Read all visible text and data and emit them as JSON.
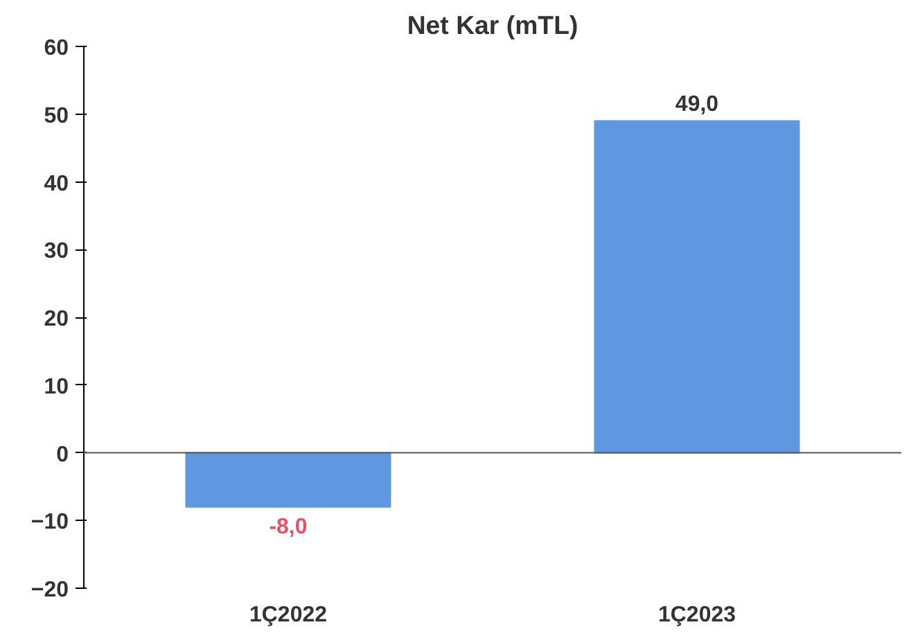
{
  "chart_data": {
    "type": "bar",
    "title": "Net Kar (mTL)",
    "categories": [
      "1Ç2022",
      "1Ç2023"
    ],
    "values": [
      -8.0,
      49.0
    ],
    "value_labels": [
      "-8,0",
      "49,0"
    ],
    "color": "#5f98e0",
    "ylim": [
      -20,
      60
    ],
    "yticks": [
      -20,
      -10,
      0,
      10,
      20,
      30,
      40,
      50,
      60
    ]
  }
}
